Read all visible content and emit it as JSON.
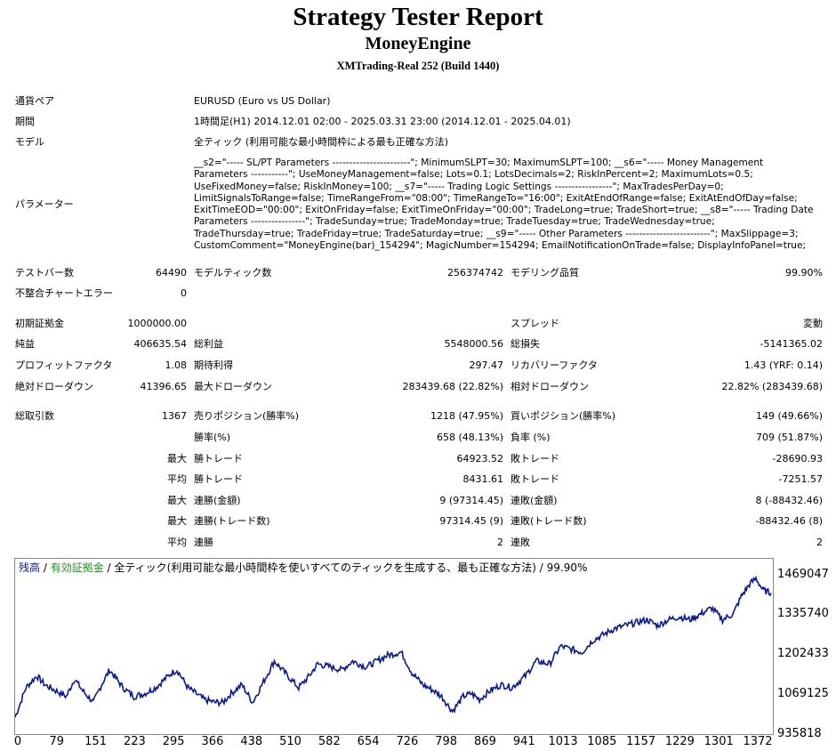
{
  "header": {
    "title": "Strategy Tester Report",
    "ea_name": "MoneyEngine",
    "server": "XMTrading-Real 252 (Build 1440)"
  },
  "info": {
    "symbol_label": "通貨ペア",
    "symbol_value": "EURUSD (Euro vs US Dollar)",
    "period_label": "期間",
    "period_value": "1時間足(H1) 2014.12.01 02:00 - 2025.03.31 23:00 (2014.12.01 - 2025.04.01)",
    "model_label": "モデル",
    "model_value": "全ティック (利用可能な最小時間枠による最も正確な方法)",
    "params_label": "パラメーター",
    "params_value": "__s2=\"----- SL/PT Parameters -----------------------\"; MinimumSLPT=30; MaximumSLPT=100; __s6=\"----- Money Management Parameters -----------\"; UseMoneyManagement=false; Lots=0.1; LotsDecimals=2; RiskInPercent=2; MaximumLots=0.5; UseFixedMoney=false; RiskInMoney=100; __s7=\"----- Trading Logic Settings -----------------\"; MaxTradesPerDay=0; LimitSignalsToRange=false; TimeRangeFrom=\"08:00\"; TimeRangeTo=\"16:00\"; ExitAtEndOfRange=false; ExitAtEndOfDay=false; ExitTimeEOD=\"00:00\"; ExitOnFriday=false; ExitTimeOnFriday=\"00:00\"; TradeLong=true; TradeShort=true; __s8=\"----- Trading Date Parameters ----------------\"; TradeSunday=true; TradeMonday=true; TradeTuesday=true; TradeWednesday=true; TradeThursday=true; TradeFriday=true; TradeSaturday=true; __s9=\"----- Other Parameters -------------------------\"; MaxSlippage=3; CustomComment=\"MoneyEngine(bar)_154294\"; MagicNumber=154294; EmailNotificationOnTrade=false; DisplayInfoPanel=true;"
  },
  "stats": {
    "bars_label": "テストバー数",
    "bars_value": "64490",
    "ticks_label": "モデルティック数",
    "ticks_value": "256374742",
    "quality_label": "モデリング品質",
    "quality_value": "99.90%",
    "mismatch_label": "不整合チャートエラー",
    "mismatch_value": "0",
    "deposit_label": "初期証拠金",
    "deposit_value": "1000000.00",
    "spread_label": "スプレッド",
    "spread_value": "変動",
    "netprofit_label": "純益",
    "netprofit_value": "406635.54",
    "grossprofit_label": "総利益",
    "grossprofit_value": "5548000.56",
    "grossloss_label": "総損失",
    "grossloss_value": "-5141365.02",
    "pf_label": "プロフィットファクタ",
    "pf_value": "1.08",
    "expected_label": "期待利得",
    "expected_value": "297.47",
    "recovery_label": "リカバリーファクタ",
    "recovery_value": "1.43 (YRF: 0.14)",
    "absdd_label": "絶対ドローダウン",
    "absdd_value": "41396.65",
    "maxdd_label": "最大ドローダウン",
    "maxdd_value": "283439.68 (22.82%)",
    "reldd_label": "相対ドローダウン",
    "reldd_value": "22.82% (283439.68)",
    "trades_label": "総取引数",
    "trades_value": "1367",
    "short_label": "売りポジション(勝率%)",
    "short_value": "1218 (47.95%)",
    "long_label": "買いポジション(勝率%)",
    "long_value": "149 (49.66%)",
    "winrate_label": "勝率(%)",
    "winrate_value": "658 (48.13%)",
    "lossrate_label": "負率 (%)",
    "lossrate_value": "709 (51.87%)",
    "max1": "最大",
    "bestwin_label": "勝トレード",
    "bestwin_value": "64923.52",
    "worstloss_label": "敗トレード",
    "worstloss_value": "-28690.93",
    "avg1": "平均",
    "avgwin_label": "勝トレード",
    "avgwin_value": "8431.61",
    "avgloss_label": "敗トレード",
    "avgloss_value": "-7251.57",
    "max2": "最大",
    "conwin_money_label": "連勝(金額)",
    "conwin_money_value": "9 (97314.45)",
    "conloss_money_label": "連敗(金額)",
    "conloss_money_value": "8 (-88432.46)",
    "max3": "最大",
    "conwin_count_label": "連勝(トレード数)",
    "conwin_count_value": "97314.45 (9)",
    "conloss_count_label": "連敗(トレード数)",
    "conloss_count_value": "-88432.46 (8)",
    "avg2": "平均",
    "avgconwin_label": "連勝",
    "avgconwin_value": "2",
    "avgconloss_label": "連敗",
    "avgconloss_value": "2"
  },
  "chart_data": {
    "type": "line",
    "legend": {
      "balance": "残高",
      "sep1": " / ",
      "equity": "有効証拠金",
      "sep2": " / ",
      "model": "全ティック(利用可能な最小時間枠を使いすべてのティックを生成する、最も正確な方法) / 99.90%"
    },
    "line_color": "#0a1a8c",
    "balance_color": "#0a1a8c",
    "equity_color": "#2a8a2a",
    "y_ticks": [
      "1469047",
      "1335740",
      "1202433",
      "1069125",
      "935818"
    ],
    "y_tick_values": [
      1469047,
      1335740,
      1202433,
      1069125,
      935818
    ],
    "x_ticks": [
      "0",
      "79",
      "151",
      "223",
      "295",
      "366",
      "438",
      "510",
      "582",
      "654",
      "726",
      "798",
      "869",
      "941",
      "1013",
      "1085",
      "1157",
      "1229",
      "1301",
      "1372"
    ],
    "x_tick_values": [
      0,
      79,
      151,
      223,
      295,
      366,
      438,
      510,
      582,
      654,
      726,
      798,
      869,
      941,
      1013,
      1085,
      1157,
      1229,
      1301,
      1372
    ],
    "ylim": [
      935818,
      1480000
    ],
    "xlim": [
      0,
      1400
    ],
    "series": [
      {
        "x": [
          0,
          20,
          40,
          55,
          75,
          95,
          110,
          125,
          145,
          160,
          175,
          200,
          220,
          240,
          260,
          290,
          300,
          320,
          350,
          370,
          385,
          400,
          420,
          440,
          460,
          480,
          505,
          525,
          545,
          560,
          585,
          605,
          625,
          650,
          670,
          690,
          715,
          735,
          755,
          775,
          790,
          810,
          830,
          845,
          860,
          880,
          900,
          920,
          945,
          965,
          990,
          1010,
          1030,
          1050,
          1070,
          1090,
          1110,
          1130,
          1150,
          1170,
          1190,
          1210,
          1230,
          1250,
          1270,
          1290,
          1310,
          1330,
          1345,
          1360,
          1372,
          1385,
          1400
        ],
        "y": [
          990000,
          1090000,
          1130000,
          1100000,
          1080000,
          1060000,
          1120000,
          1080000,
          1040000,
          1100000,
          1150000,
          1090000,
          1060000,
          1070000,
          1090000,
          1140000,
          1150000,
          1090000,
          1050000,
          1040000,
          1040000,
          1070000,
          1100000,
          1040000,
          1110000,
          1180000,
          1130000,
          1090000,
          1130000,
          1170000,
          1160000,
          1150000,
          1180000,
          1160000,
          1180000,
          1200000,
          1210000,
          1140000,
          1100000,
          1080000,
          1060000,
          1010000,
          1060000,
          1070000,
          1050000,
          1080000,
          1100000,
          1090000,
          1130000,
          1180000,
          1170000,
          1230000,
          1220000,
          1210000,
          1250000,
          1270000,
          1290000,
          1300000,
          1310000,
          1320000,
          1300000,
          1320000,
          1330000,
          1320000,
          1340000,
          1360000,
          1320000,
          1340000,
          1400000,
          1440000,
          1460000,
          1420000,
          1410000
        ]
      }
    ]
  }
}
